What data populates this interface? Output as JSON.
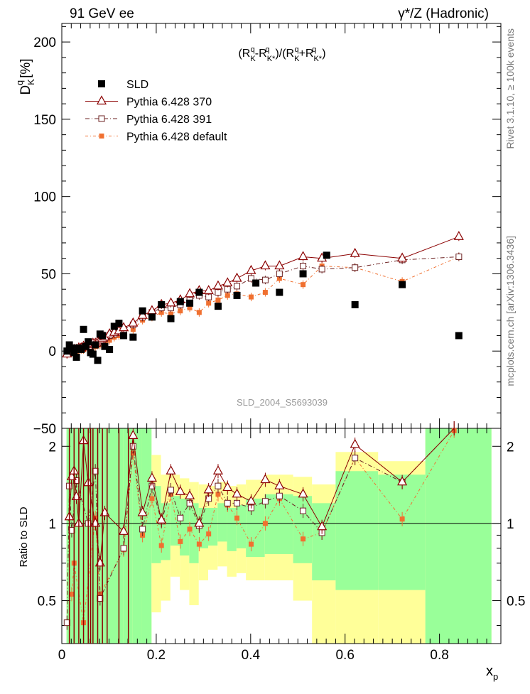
{
  "header": {
    "left": "91 GeV ee",
    "right": "γ*/Z (Hadronic)"
  },
  "side_text": {
    "rivet": "Rivet 3.1.10, ≥ 100k events",
    "mcplots": "mcplots.cern.ch [arXiv:1306.3436]"
  },
  "chart_data": {
    "type": "scatter",
    "title": "(R^q_K - R^q_K*)/(R^q_K + R^q_K*)",
    "analysis_label": "SLD_2004_S5693039",
    "ylabel_main": "D^q_K [%]",
    "ylabel_ratio": "Ratio to SLD",
    "xlabel": "x_p",
    "xlim": [
      0,
      0.93
    ],
    "ylim_main": [
      -50,
      212
    ],
    "ylim_ratio": [
      0.34,
      2.35
    ],
    "ratio_log_scale": true,
    "yticks_main": [
      "−50",
      "0",
      "50",
      "100",
      "150",
      "200"
    ],
    "yticks_ratio": [
      "0.5",
      "1",
      "2"
    ],
    "xticks": [
      "0",
      "0.2",
      "0.4",
      "0.6",
      "0.8"
    ],
    "legend_position": "top-left",
    "legend": [
      {
        "label": "SLD",
        "color": "#000000",
        "marker": "filled-square"
      },
      {
        "label": "Pythia 6.428 370",
        "color": "#8b0000",
        "marker": "open-triangle"
      },
      {
        "label": "Pythia 6.428 391",
        "color": "#6b2020",
        "marker": "open-square"
      },
      {
        "label": "Pythia 6.428 default",
        "color": "#f07030",
        "marker": "filled-square"
      }
    ],
    "band_colors": {
      "inner": "#99ff99",
      "outer": "#ffff99"
    },
    "series": [
      {
        "name": "SLD",
        "x": [
          0.011,
          0.016,
          0.021,
          0.026,
          0.031,
          0.036,
          0.041,
          0.046,
          0.051,
          0.056,
          0.061,
          0.066,
          0.071,
          0.076,
          0.081,
          0.086,
          0.091,
          0.101,
          0.111,
          0.121,
          0.131,
          0.151,
          0.171,
          0.191,
          0.211,
          0.231,
          0.251,
          0.271,
          0.291,
          0.331,
          0.371,
          0.411,
          0.461,
          0.511,
          0.561,
          0.621,
          0.721,
          0.841
        ],
        "y": [
          0,
          4,
          2,
          -1,
          -4,
          2,
          1,
          14,
          3,
          6,
          -1,
          -2,
          4,
          -6,
          11,
          10,
          3,
          1,
          16,
          18,
          10,
          9,
          26,
          22,
          30,
          21,
          32,
          31,
          38,
          29,
          36,
          44,
          38,
          50,
          62,
          30,
          43,
          10
        ]
      },
      {
        "name": "Pythia 6.428 370",
        "x": [
          0.011,
          0.016,
          0.021,
          0.026,
          0.031,
          0.036,
          0.041,
          0.046,
          0.051,
          0.056,
          0.061,
          0.066,
          0.071,
          0.076,
          0.081,
          0.086,
          0.091,
          0.101,
          0.111,
          0.121,
          0.131,
          0.151,
          0.171,
          0.191,
          0.211,
          0.231,
          0.251,
          0.271,
          0.291,
          0.311,
          0.331,
          0.351,
          0.371,
          0.401,
          0.431,
          0.461,
          0.511,
          0.551,
          0.621,
          0.721,
          0.841
        ],
        "y": [
          -2,
          0,
          0,
          1,
          1,
          2,
          2,
          3,
          3,
          3,
          4,
          5,
          5,
          6,
          7,
          8,
          9,
          11,
          12,
          13,
          15,
          18,
          23,
          26,
          30,
          31,
          33,
          37,
          39,
          39,
          42,
          44,
          47,
          52,
          55,
          55,
          61,
          60,
          63,
          60,
          74
        ]
      },
      {
        "name": "Pythia 6.428 391",
        "x": [
          0.011,
          0.016,
          0.021,
          0.026,
          0.031,
          0.036,
          0.041,
          0.046,
          0.051,
          0.056,
          0.061,
          0.066,
          0.071,
          0.076,
          0.081,
          0.086,
          0.091,
          0.101,
          0.111,
          0.121,
          0.131,
          0.151,
          0.171,
          0.191,
          0.211,
          0.231,
          0.251,
          0.271,
          0.291,
          0.311,
          0.331,
          0.351,
          0.371,
          0.401,
          0.431,
          0.461,
          0.511,
          0.551,
          0.621,
          0.721,
          0.841
        ],
        "y": [
          -2,
          0,
          0,
          1,
          1,
          2,
          2,
          3,
          3,
          3,
          4,
          4,
          5,
          5,
          6,
          7,
          8,
          10,
          11,
          12,
          14,
          17,
          22,
          25,
          28,
          28,
          30,
          33,
          36,
          35,
          38,
          40,
          42,
          47,
          46,
          50,
          55,
          53,
          54,
          59,
          61
        ]
      },
      {
        "name": "Pythia 6.428 default",
        "x": [
          0.011,
          0.016,
          0.021,
          0.026,
          0.031,
          0.036,
          0.041,
          0.046,
          0.051,
          0.056,
          0.061,
          0.066,
          0.071,
          0.076,
          0.081,
          0.086,
          0.091,
          0.101,
          0.111,
          0.121,
          0.131,
          0.151,
          0.171,
          0.191,
          0.211,
          0.231,
          0.251,
          0.271,
          0.291,
          0.311,
          0.331,
          0.351,
          0.371,
          0.401,
          0.431,
          0.461,
          0.511,
          0.551,
          0.621,
          0.721,
          0.841
        ],
        "y": [
          -2,
          -1,
          -1,
          0,
          0,
          1,
          1,
          1,
          2,
          2,
          2,
          3,
          3,
          4,
          4,
          5,
          6,
          7,
          9,
          10,
          12,
          14,
          20,
          22,
          25,
          24,
          26,
          28,
          25,
          31,
          33,
          36,
          37,
          35,
          38,
          47,
          43,
          55,
          54,
          45,
          61
        ]
      }
    ],
    "ratio_series": [
      {
        "name": "Pythia 6.428 370",
        "x": [
          0.016,
          0.021,
          0.026,
          0.031,
          0.036,
          0.046,
          0.056,
          0.071,
          0.081,
          0.091,
          0.131,
          0.151,
          0.171,
          0.191,
          0.211,
          0.231,
          0.251,
          0.271,
          0.291,
          0.311,
          0.331,
          0.351,
          0.371,
          0.401,
          0.431,
          0.461,
          0.511,
          0.551,
          0.621,
          0.721,
          0.831
        ],
        "y": [
          1.06,
          1.52,
          1.6,
          1.27,
          1.0,
          2.1,
          1.44,
          1.0,
          0.7,
          1.1,
          0.93,
          2.2,
          1.1,
          1.5,
          1.03,
          1.6,
          1.33,
          1.28,
          1.0,
          1.35,
          1.6,
          1.38,
          1.3,
          1.22,
          1.48,
          1.4,
          1.3,
          0.97,
          2.03,
          1.45,
          2.5
        ]
      },
      {
        "name": "Pythia 6.428 391",
        "x": [
          0.011,
          0.016,
          0.021,
          0.031,
          0.056,
          0.071,
          0.081,
          0.131,
          0.151,
          0.171,
          0.191,
          0.211,
          0.231,
          0.251,
          0.271,
          0.291,
          0.311,
          0.331,
          0.351,
          0.371,
          0.401,
          0.431,
          0.461,
          0.511,
          0.551,
          0.621,
          0.721,
          0.831
        ],
        "y": [
          0.41,
          1.4,
          0.94,
          1.47,
          1.0,
          1.6,
          0.51,
          0.8,
          2.0,
          0.95,
          1.4,
          1.02,
          1.35,
          1.05,
          1.2,
          0.98,
          1.25,
          1.4,
          1.2,
          1.2,
          1.15,
          1.22,
          1.28,
          1.12,
          0.92,
          1.8,
          1.45,
          2.35
        ]
      },
      {
        "name": "Pythia 6.428 default",
        "x": [
          0.021,
          0.026,
          0.046,
          0.071,
          0.081,
          0.131,
          0.151,
          0.171,
          0.191,
          0.211,
          0.231,
          0.251,
          0.271,
          0.291,
          0.311,
          0.331,
          0.351,
          0.371,
          0.401,
          0.431,
          0.461,
          0.511,
          0.551,
          0.621,
          0.721,
          0.831
        ],
        "y": [
          0.53,
          0.7,
          0.41,
          1.05,
          0.53,
          0.79,
          1.88,
          0.9,
          1.25,
          0.82,
          1.3,
          0.85,
          0.95,
          0.83,
          0.91,
          1.3,
          1.18,
          1.05,
          0.83,
          1.0,
          1.25,
          0.87,
          0.92,
          1.8,
          1.04,
          2.3
        ]
      }
    ]
  }
}
